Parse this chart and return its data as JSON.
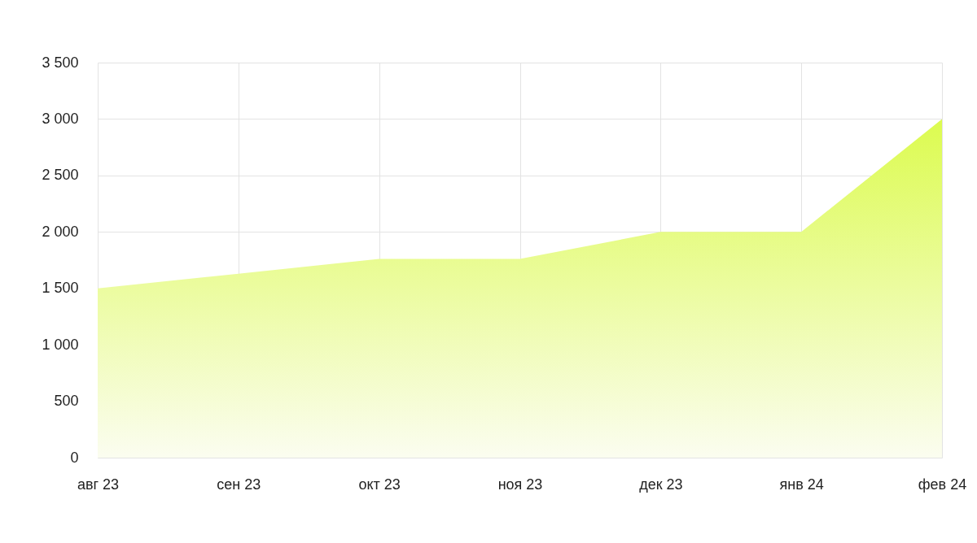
{
  "chart_data": {
    "type": "area",
    "categories": [
      "авг 23",
      "сен 23",
      "окт 23",
      "ноя 23",
      "дек 23",
      "янв 24",
      "фев 24"
    ],
    "values": [
      1500,
      1630,
      1760,
      1760,
      2000,
      2000,
      3000
    ],
    "color": "#dcfb4f",
    "ylim": [
      0,
      3500
    ],
    "yticks": [
      0,
      500,
      {
        "value": 1000,
        "label": "1 000"
      },
      {
        "value": 1500,
        "label": "1 500"
      },
      {
        "value": 2000,
        "label": "2 000"
      },
      {
        "value": 2500,
        "label": "2 500"
      },
      {
        "value": 3000,
        "label": "3 000"
      },
      {
        "value": 3500,
        "label": "3 500"
      }
    ],
    "grid": true
  }
}
